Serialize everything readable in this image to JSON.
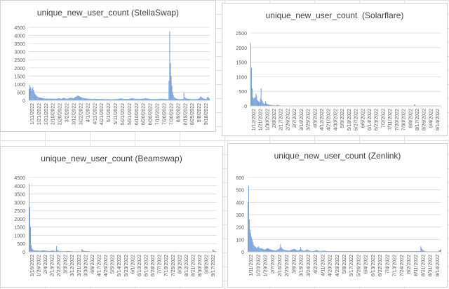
{
  "colors": {
    "series": "#6f9bd6",
    "grid": "#d9d9d9",
    "text": "#595959"
  },
  "chart_data": [
    {
      "type": "bar",
      "title": "unique_new_user_count (StellaSwap)",
      "ylim": [
        0,
        4500
      ],
      "yticks": [
        0,
        500,
        1000,
        1500,
        2000,
        2500,
        3000,
        3500,
        4000,
        4500
      ],
      "grid": true,
      "xticklabels": [
        "1/11/2022",
        "1/21/2022",
        "1/31/2022",
        "2/10/2022",
        "2/20/2022",
        "3/2/2022",
        "3/12/2022",
        "3/22/2022",
        "4/1/2022",
        "4/11/2022",
        "4/21/2022",
        "5/1/2022",
        "5/11/2022",
        "5/21/2022",
        "5/31/2022",
        "6/10/2022",
        "6/20/2022",
        "6/30/2022",
        "7/10/2022",
        "7/20/2022",
        "7/30/2022",
        "8/9/2022",
        "8/19/2022",
        "8/29/2022",
        "9/8/2022",
        "9/18/2022"
      ],
      "values": [
        700,
        950,
        820,
        600,
        750,
        820,
        650,
        480,
        380,
        330,
        280,
        240,
        210,
        190,
        170,
        160,
        150,
        140,
        150,
        130,
        120,
        110,
        100,
        110,
        115,
        105,
        100,
        95,
        110,
        105,
        100,
        95,
        90,
        100,
        110,
        100,
        95,
        100,
        110,
        120,
        130,
        120,
        110,
        100,
        110,
        125,
        140,
        150,
        130,
        120,
        110,
        100,
        110,
        130,
        140,
        150,
        160,
        150,
        140,
        130,
        120,
        180,
        200,
        230,
        260,
        300,
        280,
        250,
        220,
        200,
        180,
        160,
        150,
        140,
        130,
        120,
        110,
        100,
        105,
        110,
        100,
        95,
        90,
        85,
        80,
        85,
        90,
        95,
        100,
        90,
        85,
        80,
        78,
        75,
        80,
        82,
        85,
        80,
        78,
        75,
        72,
        70,
        72,
        75,
        78,
        80,
        75,
        70,
        72,
        68,
        70,
        65,
        68,
        70,
        72,
        75,
        78,
        80,
        85,
        90,
        95,
        100,
        110,
        120,
        110,
        100,
        95,
        90,
        85,
        80,
        82,
        85,
        88,
        90,
        95,
        100,
        110,
        120,
        130,
        120,
        110,
        100,
        95,
        90,
        85,
        80,
        82,
        85,
        88,
        90,
        92,
        95,
        100,
        105,
        110,
        120,
        130,
        120,
        110,
        100,
        95,
        90,
        85,
        80,
        78,
        75,
        72,
        70,
        72,
        75,
        78,
        80,
        82,
        85,
        88,
        90,
        92,
        95,
        100,
        95,
        90,
        85,
        80,
        78,
        75,
        72,
        70,
        1200,
        4250,
        2300,
        1500,
        900,
        500,
        300,
        200,
        150,
        120,
        100,
        90,
        85,
        80,
        75,
        70,
        72,
        75,
        78,
        80,
        480,
        200,
        150,
        120,
        100,
        95,
        90,
        85,
        80,
        78,
        75,
        72,
        70,
        72,
        75,
        78,
        80,
        85,
        90,
        95,
        100,
        150,
        200,
        250,
        180,
        150,
        120,
        100,
        90,
        85,
        80,
        180,
        220,
        160,
        120
      ]
    },
    {
      "type": "bar",
      "title": "unique_new_user_count  (Solarflare)",
      "ylim": [
        0,
        2500
      ],
      "yticks": [
        0,
        500,
        1000,
        1500,
        2000,
        2500
      ],
      "grid": true,
      "xticklabels": [
        "1/12/2022",
        "1/21/2022",
        "1/30/2022",
        "2/8/2022",
        "2/17/2022",
        "2/26/2022",
        "3/7/2022",
        "3/16/2022",
        "3/25/2022",
        "4/3/2022",
        "4/12/2022",
        "4/21/2022",
        "4/30/2022",
        "5/9/2022",
        "5/18/2022",
        "5/27/2022",
        "6/5/2022",
        "6/14/2022",
        "6/23/2022",
        "7/2/2022",
        "7/11/2022",
        "7/20/2022",
        "7/30/2022",
        "8/8/2022",
        "8/17/2022",
        "8/26/2022",
        "9/4/2022",
        "9/14/2022"
      ],
      "values": [
        2150,
        1300,
        600,
        300,
        250,
        280,
        300,
        420,
        350,
        200,
        180,
        150,
        120,
        250,
        600,
        200,
        150,
        100,
        80,
        60,
        150,
        90,
        70,
        60,
        50,
        45,
        40,
        35,
        30,
        28,
        25,
        22,
        20,
        18,
        15,
        30,
        40,
        25,
        20,
        18,
        15,
        12,
        10,
        10,
        9,
        8,
        8,
        7,
        7,
        6,
        6,
        5,
        5,
        5,
        5,
        4,
        4,
        4,
        4,
        3,
        3,
        3,
        3,
        3,
        3,
        2,
        2,
        2,
        2,
        2,
        2,
        2,
        2,
        2,
        2,
        2,
        2,
        2,
        2,
        2,
        2,
        2,
        1,
        1,
        1,
        1,
        1,
        1,
        1,
        1,
        1,
        1,
        1,
        1,
        1,
        1,
        1,
        1,
        1,
        1,
        1,
        1,
        1,
        1,
        1,
        1,
        1,
        1,
        1,
        1,
        1,
        1,
        1,
        1,
        1,
        1,
        1,
        1,
        1,
        1,
        1,
        1,
        1,
        1,
        1,
        1,
        1,
        1,
        1,
        1,
        1,
        1,
        1,
        1,
        1,
        1,
        1,
        1,
        1,
        1,
        1,
        1,
        1,
        1,
        1,
        1,
        1,
        1,
        1,
        1,
        1,
        1,
        1,
        1,
        1,
        1,
        1,
        1,
        1,
        1,
        1,
        1,
        1,
        1,
        1,
        1,
        1,
        1,
        1,
        1,
        1,
        1,
        1,
        1,
        1,
        1,
        1,
        1,
        1,
        1,
        1,
        1,
        1,
        1,
        1,
        1,
        1,
        1,
        1,
        1,
        1,
        1,
        1,
        1,
        1,
        1,
        1,
        1,
        1,
        1,
        1,
        1,
        1,
        1,
        1,
        1,
        1,
        1,
        1,
        1,
        1,
        1,
        1,
        1,
        1,
        1,
        1,
        1,
        1,
        1,
        1,
        1,
        40,
        60,
        1,
        1,
        1,
        1,
        1,
        1,
        1,
        1,
        1,
        1,
        1,
        1,
        1,
        1,
        1,
        1,
        1,
        1,
        1,
        1,
        1,
        1,
        1,
        1,
        1,
        1,
        1,
        1,
        1,
        1,
        1,
        1,
        1,
        1,
        1
      ]
    },
    {
      "type": "bar",
      "title": "unique_new_user_count (Beamswap)",
      "ylim": [
        0,
        4500
      ],
      "yticks": [
        0,
        500,
        1000,
        1500,
        2000,
        2500,
        3000,
        3500,
        4000,
        4500
      ],
      "grid": true,
      "xticklabels": [
        "1/16/2022",
        "1/26/2022",
        "2/4/2022",
        "2/13/2022",
        "2/22/2022",
        "3/3/2022",
        "3/12/2022",
        "3/21/2022",
        "3/30/2022",
        "4/8/2022",
        "4/17/2022",
        "4/26/2022",
        "5/5/2022",
        "5/14/2022",
        "5/23/2022",
        "6/1/2022",
        "6/10/2022",
        "6/19/2022",
        "6/28/2022",
        "7/7/2022",
        "7/16/2022",
        "7/25/2022",
        "8/3/2022",
        "8/12/2022",
        "8/21/2022",
        "8/30/2022",
        "9/8/2022",
        "9/17/2022"
      ],
      "values": [
        4100,
        2700,
        1500,
        400,
        200,
        150,
        120,
        100,
        90,
        80,
        85,
        90,
        80,
        75,
        70,
        65,
        60,
        70,
        80,
        90,
        100,
        85,
        80,
        75,
        70,
        65,
        60,
        55,
        50,
        45,
        60,
        70,
        80,
        70,
        60,
        50,
        45,
        40,
        350,
        120,
        80,
        60,
        50,
        45,
        40,
        38,
        35,
        30,
        28,
        25,
        30,
        35,
        40,
        45,
        50,
        45,
        40,
        35,
        30,
        28,
        25,
        22,
        20,
        18,
        20,
        22,
        25,
        28,
        30,
        28,
        25,
        22,
        20,
        150,
        120,
        80,
        60,
        50,
        45,
        40,
        38,
        35,
        30,
        28,
        25,
        22,
        20,
        18,
        16,
        15,
        14,
        13,
        12,
        11,
        10,
        10,
        9,
        9,
        8,
        8,
        8,
        7,
        7,
        7,
        6,
        6,
        6,
        6,
        5,
        5,
        5,
        5,
        5,
        5,
        4,
        4,
        4,
        4,
        4,
        4,
        4,
        4,
        4,
        4,
        4,
        4,
        4,
        4,
        4,
        4,
        4,
        4,
        4,
        4,
        4,
        4,
        4,
        4,
        4,
        4,
        4,
        4,
        4,
        4,
        4,
        4,
        4,
        4,
        4,
        4,
        4,
        4,
        4,
        4,
        4,
        4,
        4,
        4,
        4,
        4,
        4,
        4,
        4,
        4,
        4,
        4,
        4,
        4,
        4,
        4,
        4,
        4,
        4,
        4,
        4,
        4,
        4,
        4,
        4,
        4,
        4,
        4,
        4,
        4,
        4,
        4,
        4,
        4,
        4,
        4,
        4,
        4,
        4,
        4,
        4,
        4,
        4,
        4,
        4,
        4,
        4,
        4,
        40,
        4,
        4,
        4,
        4,
        4,
        4,
        4,
        4,
        4,
        4,
        4,
        4,
        4,
        4,
        4,
        4,
        4,
        4,
        4,
        4,
        4,
        4,
        4,
        4,
        4,
        4,
        4,
        4,
        4,
        4,
        4,
        4,
        4,
        4,
        4,
        4,
        4,
        4,
        4,
        4,
        4,
        4,
        4,
        4,
        4,
        4,
        4,
        4,
        4,
        4,
        4,
        150,
        100,
        60,
        40,
        30,
        20
      ]
    },
    {
      "type": "bar",
      "title": "unique_new_user_count (Zenlink)",
      "ylim": [
        0,
        600
      ],
      "yticks": [
        0,
        100,
        200,
        300,
        400,
        500,
        600
      ],
      "grid": true,
      "xticklabels": [
        "1/11/2022",
        "1/20/2022",
        "1/29/2022",
        "2/7/2022",
        "2/16/2022",
        "2/25/2022",
        "3/6/2022",
        "3/15/2022",
        "3/24/2022",
        "4/2/2022",
        "4/11/2022",
        "4/20/2022",
        "4/29/2022",
        "5/8/2022",
        "5/17/2022",
        "5/26/2022",
        "6/4/2022",
        "6/13/2022",
        "6/22/2022",
        "7/4/2022",
        "7/13/2022",
        "7/24/2022",
        "8/2/2022",
        "8/11/2022",
        "8/21/2022",
        "8/31/2022",
        "9/14/2022"
      ],
      "values": [
        400,
        530,
        260,
        180,
        150,
        120,
        100,
        80,
        60,
        50,
        45,
        40,
        35,
        30,
        40,
        45,
        35,
        30,
        25,
        28,
        30,
        25,
        22,
        20,
        18,
        20,
        22,
        25,
        28,
        30,
        25,
        22,
        20,
        18,
        16,
        15,
        14,
        13,
        12,
        11,
        10,
        12,
        15,
        18,
        20,
        25,
        30,
        60,
        40,
        30,
        25,
        20,
        18,
        16,
        15,
        14,
        13,
        12,
        11,
        10,
        10,
        12,
        14,
        16,
        18,
        20,
        22,
        25,
        20,
        18,
        15,
        12,
        10,
        12,
        15,
        18,
        40,
        20,
        15,
        12,
        10,
        8,
        10,
        12,
        15,
        18,
        20,
        15,
        12,
        10,
        8,
        7,
        6,
        5,
        6,
        7,
        8,
        10,
        12,
        15,
        12,
        10,
        8,
        7,
        6,
        5,
        6,
        7,
        8,
        9,
        10,
        9,
        8,
        7,
        6,
        5,
        5,
        5,
        5,
        5,
        5,
        5,
        5,
        5,
        5,
        5,
        5,
        5,
        5,
        5,
        5,
        5,
        5,
        5,
        5,
        5,
        5,
        5,
        5,
        5,
        5,
        5,
        5,
        5,
        5,
        5,
        5,
        5,
        5,
        5,
        5,
        5,
        5,
        5,
        5,
        5,
        5,
        5,
        5,
        5,
        5,
        5,
        5,
        5,
        5,
        5,
        5,
        5,
        5,
        5,
        5,
        5,
        5,
        5,
        5,
        5,
        5,
        5,
        5,
        5,
        5,
        5,
        5,
        5,
        5,
        5,
        5,
        5,
        5,
        5,
        5,
        5,
        5,
        5,
        5,
        5,
        5,
        5,
        5,
        5,
        5,
        5,
        5,
        5,
        5,
        5,
        5,
        5,
        5,
        5,
        5,
        5,
        5,
        5,
        5,
        5,
        5,
        5,
        5,
        5,
        5,
        5,
        5,
        5,
        5,
        5,
        5,
        5,
        5,
        5,
        5,
        5,
        5,
        5,
        5,
        5,
        5,
        5,
        5,
        5,
        5,
        5,
        5,
        5,
        5,
        5,
        5,
        5,
        5,
        5,
        45,
        30,
        20,
        15,
        10,
        8,
        6,
        5,
        4,
        3,
        3,
        3,
        3,
        3,
        3,
        3,
        3,
        3,
        3,
        3,
        3,
        3,
        3,
        3,
        3,
        3,
        10,
        12,
        15,
        20
      ]
    }
  ]
}
